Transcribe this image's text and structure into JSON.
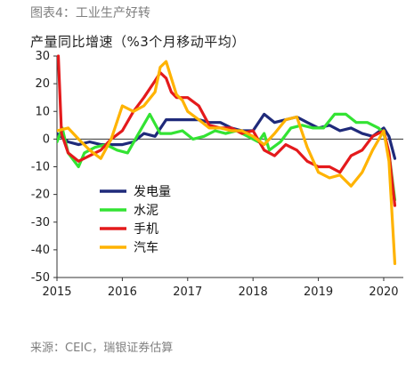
{
  "figure_title": "图表4：工业生产好转",
  "source_note": "来源：CEIC，瑞银证券估算",
  "chart_data": {
    "type": "line",
    "title": "",
    "ylabel": "产量同比增速（%3个月移动平均）",
    "xlabel": "",
    "ylim": [
      -50,
      30
    ],
    "yticks": [
      30,
      20,
      10,
      0,
      -10,
      -20,
      -30,
      -40,
      -50
    ],
    "xlim": [
      2015.0,
      2020.3
    ],
    "xticks": [
      2015,
      2016,
      2017,
      2018,
      2019,
      2020
    ],
    "xtick_labels": [
      "2015",
      "2016",
      "2017",
      "2018",
      "2019",
      "2020"
    ],
    "zero_line": true,
    "grid": false,
    "legend": "middle-left",
    "series": [
      {
        "name": "发电量",
        "color": "#1f2a7a",
        "points": [
          [
            2015.0,
            2
          ],
          [
            2015.17,
            -1
          ],
          [
            2015.33,
            -2
          ],
          [
            2015.5,
            -1
          ],
          [
            2015.67,
            -2
          ],
          [
            2015.83,
            -2
          ],
          [
            2016.0,
            -2
          ],
          [
            2016.17,
            -1
          ],
          [
            2016.33,
            2
          ],
          [
            2016.5,
            1
          ],
          [
            2016.67,
            7
          ],
          [
            2016.83,
            7
          ],
          [
            2017.0,
            7
          ],
          [
            2017.17,
            7
          ],
          [
            2017.33,
            6
          ],
          [
            2017.5,
            6
          ],
          [
            2017.67,
            4
          ],
          [
            2017.83,
            3
          ],
          [
            2018.0,
            3
          ],
          [
            2018.17,
            9
          ],
          [
            2018.33,
            6
          ],
          [
            2018.5,
            7
          ],
          [
            2018.67,
            8
          ],
          [
            2018.83,
            6
          ],
          [
            2019.0,
            4
          ],
          [
            2019.17,
            5
          ],
          [
            2019.33,
            3
          ],
          [
            2019.5,
            4
          ],
          [
            2019.67,
            2
          ],
          [
            2019.83,
            1
          ],
          [
            2020.0,
            4
          ],
          [
            2020.08,
            1
          ],
          [
            2020.17,
            -7
          ]
        ]
      },
      {
        "name": "水泥",
        "color": "#33e333",
        "points": [
          [
            2015.0,
            -1
          ],
          [
            2015.08,
            4
          ],
          [
            2015.17,
            -5
          ],
          [
            2015.33,
            -10
          ],
          [
            2015.42,
            -5
          ],
          [
            2015.58,
            -3
          ],
          [
            2015.75,
            -2
          ],
          [
            2015.92,
            -4
          ],
          [
            2016.08,
            -5
          ],
          [
            2016.25,
            2
          ],
          [
            2016.42,
            9
          ],
          [
            2016.58,
            2
          ],
          [
            2016.75,
            2
          ],
          [
            2016.92,
            3
          ],
          [
            2017.08,
            0
          ],
          [
            2017.25,
            1
          ],
          [
            2017.42,
            3
          ],
          [
            2017.58,
            2
          ],
          [
            2017.75,
            3
          ],
          [
            2017.92,
            1
          ],
          [
            2018.08,
            -1
          ],
          [
            2018.17,
            2
          ],
          [
            2018.25,
            -4
          ],
          [
            2018.42,
            -1
          ],
          [
            2018.58,
            4
          ],
          [
            2018.75,
            5
          ],
          [
            2018.92,
            4
          ],
          [
            2019.08,
            4
          ],
          [
            2019.25,
            9
          ],
          [
            2019.42,
            9
          ],
          [
            2019.58,
            6
          ],
          [
            2019.75,
            6
          ],
          [
            2019.92,
            4
          ],
          [
            2020.0,
            2
          ],
          [
            2020.08,
            -5
          ],
          [
            2020.17,
            -22
          ]
        ]
      },
      {
        "name": "手机",
        "color": "#e41a1c",
        "points": [
          [
            2015.02,
            30
          ],
          [
            2015.07,
            2
          ],
          [
            2015.17,
            -5
          ],
          [
            2015.33,
            -8
          ],
          [
            2015.5,
            -6
          ],
          [
            2015.67,
            -4
          ],
          [
            2015.83,
            0
          ],
          [
            2016.0,
            3
          ],
          [
            2016.17,
            10
          ],
          [
            2016.33,
            15
          ],
          [
            2016.5,
            21
          ],
          [
            2016.58,
            24
          ],
          [
            2016.67,
            22
          ],
          [
            2016.75,
            17
          ],
          [
            2016.83,
            15
          ],
          [
            2017.0,
            15
          ],
          [
            2017.17,
            12
          ],
          [
            2017.33,
            5
          ],
          [
            2017.5,
            4
          ],
          [
            2017.67,
            4
          ],
          [
            2017.83,
            2
          ],
          [
            2018.0,
            3
          ],
          [
            2018.17,
            -4
          ],
          [
            2018.33,
            -6
          ],
          [
            2018.5,
            -2
          ],
          [
            2018.67,
            -4
          ],
          [
            2018.83,
            -8
          ],
          [
            2019.0,
            -10
          ],
          [
            2019.17,
            -10
          ],
          [
            2019.33,
            -12
          ],
          [
            2019.5,
            -6
          ],
          [
            2019.67,
            -4
          ],
          [
            2019.83,
            1
          ],
          [
            2020.0,
            3
          ],
          [
            2020.08,
            -5
          ],
          [
            2020.17,
            -24
          ]
        ]
      },
      {
        "name": "汽车",
        "color": "#ffb300",
        "points": [
          [
            2015.0,
            3
          ],
          [
            2015.17,
            4
          ],
          [
            2015.33,
            0
          ],
          [
            2015.5,
            -4
          ],
          [
            2015.67,
            -7
          ],
          [
            2015.83,
            0
          ],
          [
            2016.0,
            12
          ],
          [
            2016.17,
            10
          ],
          [
            2016.33,
            12
          ],
          [
            2016.5,
            17
          ],
          [
            2016.58,
            26
          ],
          [
            2016.67,
            28
          ],
          [
            2016.75,
            22
          ],
          [
            2016.83,
            16
          ],
          [
            2016.92,
            14
          ],
          [
            2017.0,
            10
          ],
          [
            2017.17,
            7
          ],
          [
            2017.33,
            4
          ],
          [
            2017.5,
            4
          ],
          [
            2017.67,
            3
          ],
          [
            2017.83,
            3
          ],
          [
            2018.0,
            1
          ],
          [
            2018.17,
            -2
          ],
          [
            2018.33,
            2
          ],
          [
            2018.5,
            7
          ],
          [
            2018.67,
            8
          ],
          [
            2018.83,
            -3
          ],
          [
            2019.0,
            -12
          ],
          [
            2019.17,
            -14
          ],
          [
            2019.33,
            -13
          ],
          [
            2019.5,
            -17
          ],
          [
            2019.67,
            -12
          ],
          [
            2019.83,
            -4
          ],
          [
            2020.0,
            3
          ],
          [
            2020.08,
            -8
          ],
          [
            2020.17,
            -45
          ]
        ]
      }
    ]
  }
}
